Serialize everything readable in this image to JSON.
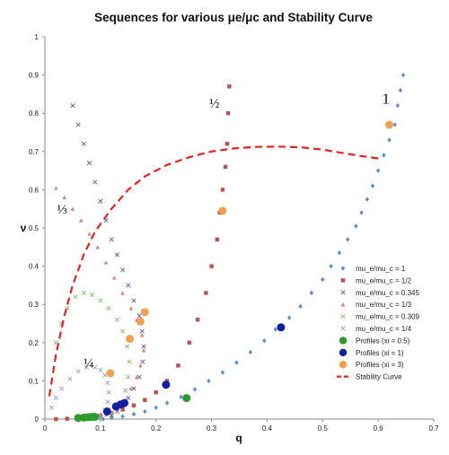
{
  "chart_data": {
    "type": "scatter",
    "title": "Sequences for various μe/μc and Stability Curve",
    "xlabel": "q",
    "ylabel": "ν",
    "xlim": [
      0,
      0.7
    ],
    "ylim": [
      0,
      1
    ],
    "xticks": [
      "0",
      "0.1",
      "0.2",
      "0.3",
      "0.4",
      "0.5",
      "0.6",
      "0.7"
    ],
    "yticks": [
      "0",
      "0.1",
      "0.2",
      "0.3",
      "0.4",
      "0.5",
      "0.6",
      "0.7",
      "0.8",
      "0.9",
      "1"
    ],
    "grid": false,
    "legend_position": "lower-right",
    "annotations": [
      {
        "text": "1",
        "x": 0.607,
        "y": 0.825
      },
      {
        "text": "½",
        "x": 0.296,
        "y": 0.815
      },
      {
        "text": "⅓",
        "x": 0.022,
        "y": 0.537
      },
      {
        "text": "¼",
        "x": 0.07,
        "y": 0.135
      }
    ],
    "series": [
      {
        "name": "mu_e/mu_c = 1",
        "marker": "diamond",
        "color": "#5b8fd4",
        "x": [
          0.105,
          0.12,
          0.14,
          0.16,
          0.18,
          0.2,
          0.22,
          0.245,
          0.27,
          0.295,
          0.32,
          0.345,
          0.37,
          0.395,
          0.415,
          0.44,
          0.46,
          0.48,
          0.5,
          0.515,
          0.53,
          0.545,
          0.56,
          0.57,
          0.58,
          0.59,
          0.6,
          0.61,
          0.62,
          0.63,
          0.635,
          0.64,
          0.645
        ],
        "y": [
          0.0,
          0.003,
          0.007,
          0.013,
          0.02,
          0.03,
          0.042,
          0.058,
          0.078,
          0.1,
          0.122,
          0.148,
          0.175,
          0.205,
          0.235,
          0.265,
          0.295,
          0.33,
          0.365,
          0.4,
          0.435,
          0.47,
          0.505,
          0.54,
          0.575,
          0.61,
          0.65,
          0.69,
          0.73,
          0.77,
          0.82,
          0.86,
          0.9
        ]
      },
      {
        "name": "mu_e/mu_c = 1/2",
        "marker": "square",
        "color": "#c0504d",
        "x": [
          0.02,
          0.04,
          0.06,
          0.08,
          0.1,
          0.12,
          0.14,
          0.16,
          0.18,
          0.2,
          0.22,
          0.24,
          0.26,
          0.275,
          0.29,
          0.3,
          0.31,
          0.315,
          0.32,
          0.325,
          0.328,
          0.33,
          0.332
        ],
        "y": [
          0.0,
          0.001,
          0.003,
          0.006,
          0.01,
          0.016,
          0.025,
          0.036,
          0.05,
          0.07,
          0.1,
          0.14,
          0.2,
          0.26,
          0.33,
          0.4,
          0.47,
          0.54,
          0.6,
          0.66,
          0.72,
          0.8,
          0.87
        ]
      },
      {
        "name": "mu_e/mu_c = 0.345",
        "marker": "x",
        "color": "#7060a8",
        "x": [
          0.05,
          0.06,
          0.07,
          0.08,
          0.09,
          0.1,
          0.11,
          0.12,
          0.13,
          0.14,
          0.15,
          0.16,
          0.17,
          0.175,
          0.178,
          0.176,
          0.17,
          0.16,
          0.15,
          0.14,
          0.13,
          0.12,
          0.1,
          0.08,
          0.06
        ],
        "y": [
          0.82,
          0.77,
          0.72,
          0.67,
          0.62,
          0.57,
          0.52,
          0.47,
          0.43,
          0.39,
          0.35,
          0.31,
          0.27,
          0.23,
          0.19,
          0.15,
          0.11,
          0.08,
          0.055,
          0.035,
          0.02,
          0.01,
          0.004,
          0.001,
          0.0
        ]
      },
      {
        "name": "mu_e/mu_c = 1/3",
        "marker": "triangle",
        "color": "#d9807a",
        "x": [
          0.02,
          0.035,
          0.05,
          0.065,
          0.08,
          0.095,
          0.11,
          0.125,
          0.14,
          0.155,
          0.165,
          0.175,
          0.178,
          0.172,
          0.165,
          0.155,
          0.145,
          0.13,
          0.11,
          0.09
        ],
        "y": [
          0.605,
          0.58,
          0.55,
          0.52,
          0.485,
          0.45,
          0.41,
          0.37,
          0.33,
          0.29,
          0.26,
          0.22,
          0.18,
          0.14,
          0.11,
          0.08,
          0.05,
          0.03,
          0.012,
          0.003
        ]
      },
      {
        "name": "mu_e/mu_c = 0.309",
        "marker": "x",
        "color": "#8dbf7a",
        "x": [
          0.02,
          0.03,
          0.04,
          0.055,
          0.07,
          0.085,
          0.1,
          0.115,
          0.13,
          0.14,
          0.148,
          0.152,
          0.15,
          0.145,
          0.135,
          0.12,
          0.1
        ],
        "y": [
          0.2,
          0.25,
          0.29,
          0.32,
          0.33,
          0.325,
          0.31,
          0.29,
          0.26,
          0.23,
          0.19,
          0.15,
          0.11,
          0.075,
          0.04,
          0.015,
          0.002
        ]
      },
      {
        "name": "mu_e/mu_c = 1/4",
        "marker": "x",
        "color": "#a9a0cf",
        "x": [
          0.012,
          0.02,
          0.03,
          0.045,
          0.06,
          0.075,
          0.09,
          0.1,
          0.108,
          0.113,
          0.115,
          0.113,
          0.108,
          0.1
        ],
        "y": [
          0.03,
          0.055,
          0.08,
          0.105,
          0.125,
          0.135,
          0.135,
          0.128,
          0.115,
          0.095,
          0.07,
          0.045,
          0.025,
          0.01
        ]
      },
      {
        "name": "Profiles (xi = 0.5)",
        "marker": "circle",
        "color": "#2e9a2e",
        "x": [
          0.06,
          0.07,
          0.078,
          0.085,
          0.09,
          0.255
        ],
        "y": [
          0.003,
          0.004,
          0.005,
          0.006,
          0.006,
          0.055
        ]
      },
      {
        "name": "Profiles (xi = 1)",
        "marker": "circle",
        "color": "#1020a0",
        "x": [
          0.112,
          0.128,
          0.136,
          0.143,
          0.218,
          0.425
        ],
        "y": [
          0.02,
          0.033,
          0.038,
          0.042,
          0.09,
          0.24
        ]
      },
      {
        "name": "Profiles (xi = 3)",
        "marker": "circle",
        "color": "#f0a050",
        "x": [
          0.118,
          0.153,
          0.172,
          0.18,
          0.32,
          0.62
        ],
        "y": [
          0.12,
          0.21,
          0.255,
          0.28,
          0.545,
          0.77
        ]
      },
      {
        "name": "Stability Curve",
        "marker": "dashed-line",
        "color": "#e82020",
        "x": [
          0.008,
          0.02,
          0.035,
          0.05,
          0.07,
          0.09,
          0.12,
          0.15,
          0.18,
          0.22,
          0.26,
          0.3,
          0.34,
          0.38,
          0.42,
          0.46,
          0.5,
          0.54,
          0.57,
          0.6
        ],
        "y": [
          0.06,
          0.17,
          0.27,
          0.35,
          0.43,
          0.49,
          0.55,
          0.6,
          0.635,
          0.665,
          0.685,
          0.7,
          0.708,
          0.712,
          0.713,
          0.711,
          0.705,
          0.695,
          0.688,
          0.682
        ]
      }
    ]
  }
}
